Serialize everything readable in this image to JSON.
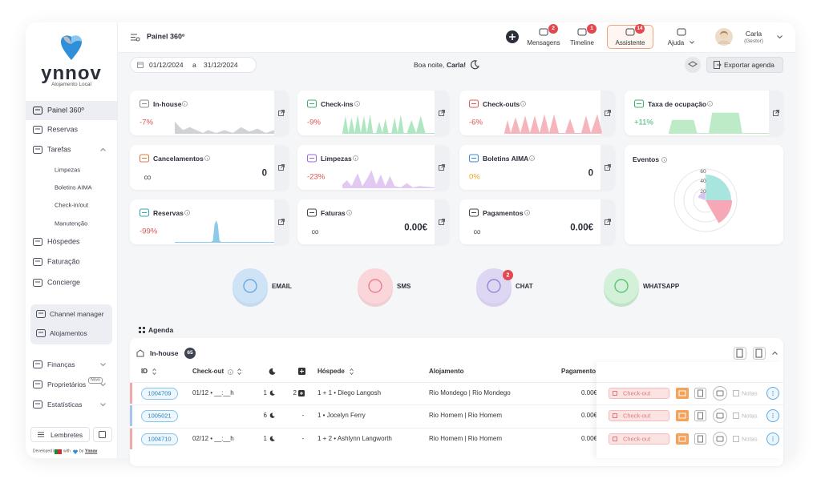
{
  "sidebar": {
    "brand": "ynnov",
    "tagline": "Alojamento Local",
    "menu": [
      {
        "label": "Painel 360º"
      },
      {
        "label": "Reservas"
      },
      {
        "label": "Tarefas",
        "children": [
          "Limpezas",
          "Boletins AIMA",
          "Check-in/out",
          "Manutenção"
        ]
      },
      {
        "label": "Hóspedes"
      },
      {
        "label": "Faturação"
      },
      {
        "label": "Concierge"
      }
    ],
    "group": [
      "Channel manager",
      "Alojamentos"
    ],
    "menu2": [
      {
        "label": "Finanças"
      },
      {
        "label": "Proprietários",
        "badge": "Novo"
      },
      {
        "label": "Estatísticas"
      }
    ],
    "reminders": "Lembretes",
    "footer": {
      "developed": "Developed in",
      "with": "with",
      "by": "by",
      "company": "Ynnov"
    }
  },
  "topbar": {
    "title": "Painel 360º",
    "nav": [
      {
        "label": "Mensagens",
        "badge": "2"
      },
      {
        "label": "Timeline",
        "badge": "1"
      },
      {
        "label": "Assistente",
        "badge": "14"
      },
      {
        "label": "Ajuda"
      }
    ],
    "user": {
      "name": "Carla",
      "role": "(Gestor)"
    }
  },
  "toolbar": {
    "date_from": "01/12/2024",
    "separator": "a",
    "date_to": "31/12/2024",
    "greeting": "Boa noite,",
    "user": "Carla!",
    "export": "Exportar agenda"
  },
  "kpis": [
    {
      "title": "In-house",
      "change": "-7%"
    },
    {
      "title": "Check-ins",
      "change": "-9%"
    },
    {
      "title": "Check-outs",
      "change": "-6%"
    },
    {
      "title": "Taxa de ocupação",
      "change": "+11%"
    },
    {
      "title": "Cancelamentos",
      "sub": "∞",
      "value": "0"
    },
    {
      "title": "Limpezas",
      "change": "-23%"
    },
    {
      "title": "Boletins AIMA",
      "change": "0%",
      "value": "0"
    },
    {
      "title": "Reservas",
      "change": "-99%"
    },
    {
      "title": "Faturas",
      "sub": "∞",
      "value": "0.00€"
    },
    {
      "title": "Pagamentos",
      "sub": "∞",
      "value": "0.00€"
    }
  ],
  "eventos": {
    "title": "Eventos",
    "ticks": [
      "60",
      "40",
      "20"
    ]
  },
  "channels": [
    {
      "label": "EMAIL"
    },
    {
      "label": "SMS"
    },
    {
      "label": "CHAT",
      "badge": "2"
    },
    {
      "label": "WHATSAPP"
    }
  ],
  "agenda": {
    "title": "Agenda",
    "section": "In-house",
    "count": "65",
    "headers": {
      "id": "ID",
      "checkout": "Check-out",
      "guest": "Hóspede",
      "accommodation": "Alojamento",
      "payment": "Pagamento"
    },
    "rows": [
      {
        "id": "1004709",
        "checkout": "01/12 • __:__h",
        "nights": "1",
        "extra": "2",
        "guests": "1 + 1 • Diego Langosh",
        "accommodation": "Rio Mondego | Rio Mondego",
        "payment": "0.00€"
      },
      {
        "id": "1005021",
        "nights": "6",
        "extra": "-",
        "guests": "1 • Jocelyn Ferry",
        "accommodation": "Rio Homem | Rio Homem",
        "payment": "0.00€"
      },
      {
        "id": "1004710",
        "checkout": "02/12 • __:__h",
        "nights": "1",
        "extra": "-",
        "guests": "1 + 2 • Ashlynn Langworth",
        "accommodation": "Rio Homem | Rio Homem",
        "payment": "0.00€"
      }
    ],
    "actions": {
      "checkout": "Check-out",
      "notes": "Notas"
    }
  }
}
